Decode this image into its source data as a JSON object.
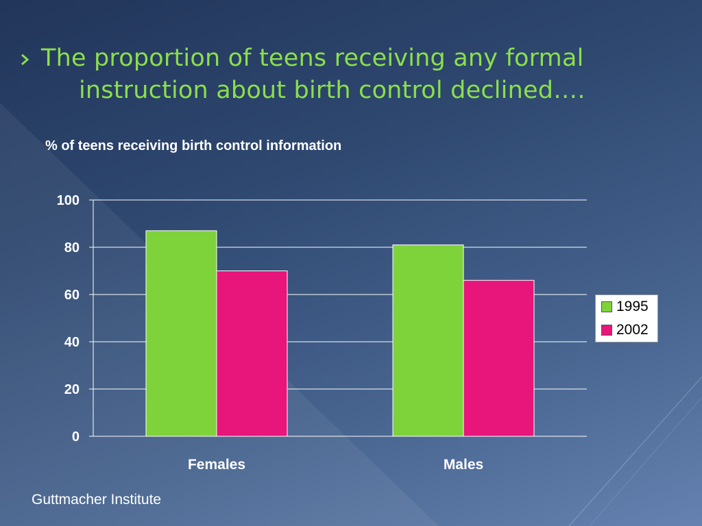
{
  "slide": {
    "title_line1": "The proportion of teens receiving any formal",
    "title_line2": "instruction about birth control declined….",
    "source": "Guttmacher Institute"
  },
  "chart_data": {
    "type": "bar",
    "title": "% of teens receiving birth control information",
    "xlabel": "",
    "ylabel": "",
    "categories": [
      "Females",
      "Males"
    ],
    "series": [
      {
        "name": "1995",
        "values": [
          87,
          81
        ],
        "color": "#7ed23a"
      },
      {
        "name": "2002",
        "values": [
          70,
          66
        ],
        "color": "#e8157a"
      }
    ],
    "ylim": [
      0,
      100
    ],
    "yticks": [
      0,
      20,
      40,
      60,
      80,
      100
    ],
    "grid": true,
    "legend": "right"
  }
}
